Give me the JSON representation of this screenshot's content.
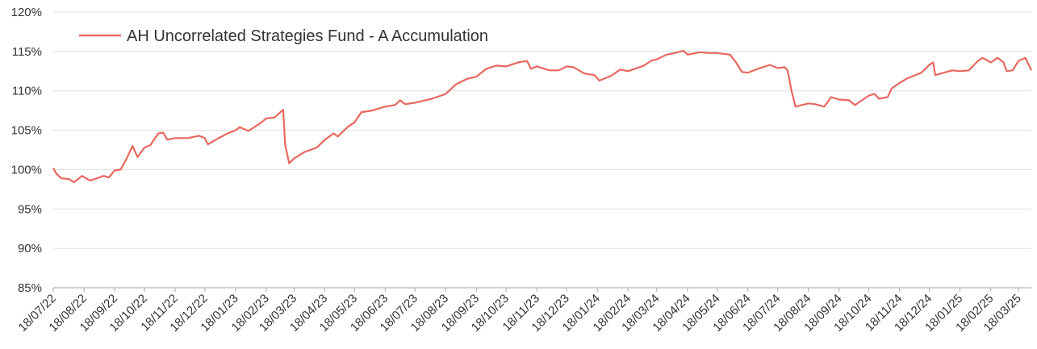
{
  "chart_data": {
    "type": "line",
    "x": [
      "18/07/22",
      "21/07/22",
      "26/07/22",
      "03/08/22",
      "08/08/22",
      "16/08/22",
      "24/08/22",
      "31/08/22",
      "07/09/22",
      "12/09/22",
      "18/09/22",
      "24/09/22",
      "30/09/22",
      "06/10/22",
      "11/10/22",
      "18/10/22",
      "24/10/22",
      "01/11/22",
      "06/11/22",
      "10/11/22",
      "18/11/22",
      "01/12/22",
      "12/12/22",
      "18/12/22",
      "21/12/22",
      "29/12/22",
      "10/01/23",
      "18/01/23",
      "22/01/23",
      "31/01/23",
      "12/02/23",
      "18/02/23",
      "26/02/23",
      "07/03/23",
      "09/03/23",
      "13/03/23",
      "18/03/23",
      "28/03/23",
      "10/04/23",
      "18/04/23",
      "27/04/23",
      "01/05/23",
      "12/05/23",
      "18/05/23",
      "25/05/23",
      "05/06/23",
      "18/06/23",
      "28/06/23",
      "03/07/23",
      "08/07/23",
      "18/07/23",
      "04/08/23",
      "18/08/23",
      "28/08/23",
      "08/09/23",
      "18/09/23",
      "28/09/23",
      "08/10/23",
      "18/10/23",
      "30/10/23",
      "08/11/23",
      "12/11/23",
      "18/11/23",
      "01/12/23",
      "10/12/23",
      "18/12/23",
      "25/12/23",
      "05/01/24",
      "15/01/24",
      "20/01/24",
      "01/02/24",
      "10/02/24",
      "18/02/24",
      "05/03/24",
      "12/03/24",
      "18/03/24",
      "28/03/24",
      "05/04/24",
      "14/04/24",
      "18/04/24",
      "01/05/24",
      "10/05/24",
      "18/05/24",
      "31/05/24",
      "06/06/24",
      "12/06/24",
      "18/06/24",
      "28/06/24",
      "10/07/24",
      "18/07/24",
      "25/07/24",
      "28/07/24",
      "01/08/24",
      "05/08/24",
      "18/08/24",
      "25/08/24",
      "03/09/24",
      "10/09/24",
      "18/09/24",
      "28/09/24",
      "04/10/24",
      "18/10/24",
      "24/10/24",
      "28/10/24",
      "06/11/24",
      "10/11/24",
      "18/11/24",
      "26/11/24",
      "10/12/24",
      "18/12/24",
      "22/12/24",
      "24/12/24",
      "10/01/25",
      "18/01/25",
      "27/01/25",
      "05/02/25",
      "10/02/25",
      "18/02/25",
      "25/02/25",
      "03/03/25",
      "06/03/25",
      "12/03/25",
      "18/03/25",
      "25/03/25",
      "31/03/25"
    ],
    "series": [
      {
        "name": "AH Uncorrelated Strategies Fund - A Accumulation",
        "color": "#e8685f",
        "values": [
          100.2,
          99.5,
          98.9,
          98.8,
          98.4,
          99.2,
          98.6,
          98.9,
          99.2,
          99.0,
          99.9,
          100.0,
          101.4,
          103.0,
          101.6,
          102.8,
          103.1,
          104.6,
          104.7,
          103.8,
          104.0,
          104.0,
          104.3,
          104.0,
          103.2,
          103.8,
          104.6,
          105.0,
          105.4,
          104.9,
          105.9,
          106.5,
          106.6,
          107.6,
          103.2,
          100.8,
          101.4,
          102.2,
          102.8,
          103.8,
          104.6,
          104.2,
          105.5,
          106.0,
          107.3,
          107.5,
          108.0,
          108.2,
          108.8,
          108.3,
          108.5,
          109.0,
          109.6,
          110.8,
          111.5,
          111.8,
          112.8,
          113.2,
          113.1,
          113.6,
          113.8,
          112.8,
          113.1,
          112.6,
          112.6,
          113.1,
          113.0,
          112.2,
          112.0,
          111.3,
          111.9,
          112.7,
          112.5,
          113.2,
          113.8,
          114.0,
          114.6,
          114.8,
          115.1,
          114.6,
          114.9,
          114.8,
          114.8,
          114.6,
          113.6,
          112.4,
          112.3,
          112.8,
          113.3,
          112.9,
          113.0,
          112.6,
          110.0,
          108.0,
          108.4,
          108.3,
          108.0,
          109.2,
          108.9,
          108.8,
          108.2,
          109.4,
          109.6,
          109.0,
          109.2,
          110.3,
          111.0,
          111.6,
          112.3,
          113.3,
          113.6,
          112.0,
          112.6,
          112.5,
          112.6,
          113.8,
          114.2,
          113.6,
          114.2,
          113.6,
          112.5,
          112.6,
          113.8,
          114.2,
          112.6
        ]
      }
    ],
    "xlim": [
      "18/07/22",
      "31/03/25"
    ],
    "xticks": [
      "18/07/22",
      "18/08/22",
      "18/09/22",
      "18/10/22",
      "18/11/22",
      "18/12/22",
      "18/01/23",
      "18/02/23",
      "18/03/23",
      "18/04/23",
      "18/05/23",
      "18/06/23",
      "18/07/23",
      "18/08/23",
      "18/09/23",
      "18/10/23",
      "18/11/23",
      "18/12/23",
      "18/01/24",
      "18/02/24",
      "18/03/24",
      "18/04/24",
      "18/05/24",
      "18/06/24",
      "18/07/24",
      "18/08/24",
      "18/09/24",
      "18/10/24",
      "18/11/24",
      "18/12/24",
      "18/01/25",
      "18/02/25",
      "18/03/25"
    ],
    "ylim": [
      85,
      120
    ],
    "yticks": [
      {
        "value": 85,
        "label": "85%"
      },
      {
        "value": 90,
        "label": "90%"
      },
      {
        "value": 95,
        "label": "95%"
      },
      {
        "value": 100,
        "label": "100%"
      },
      {
        "value": 105,
        "label": "105%"
      },
      {
        "value": 110,
        "label": "110%"
      },
      {
        "value": 115,
        "label": "115%"
      },
      {
        "value": 120,
        "label": "120%"
      }
    ],
    "grid": true,
    "legend": "top-left"
  }
}
